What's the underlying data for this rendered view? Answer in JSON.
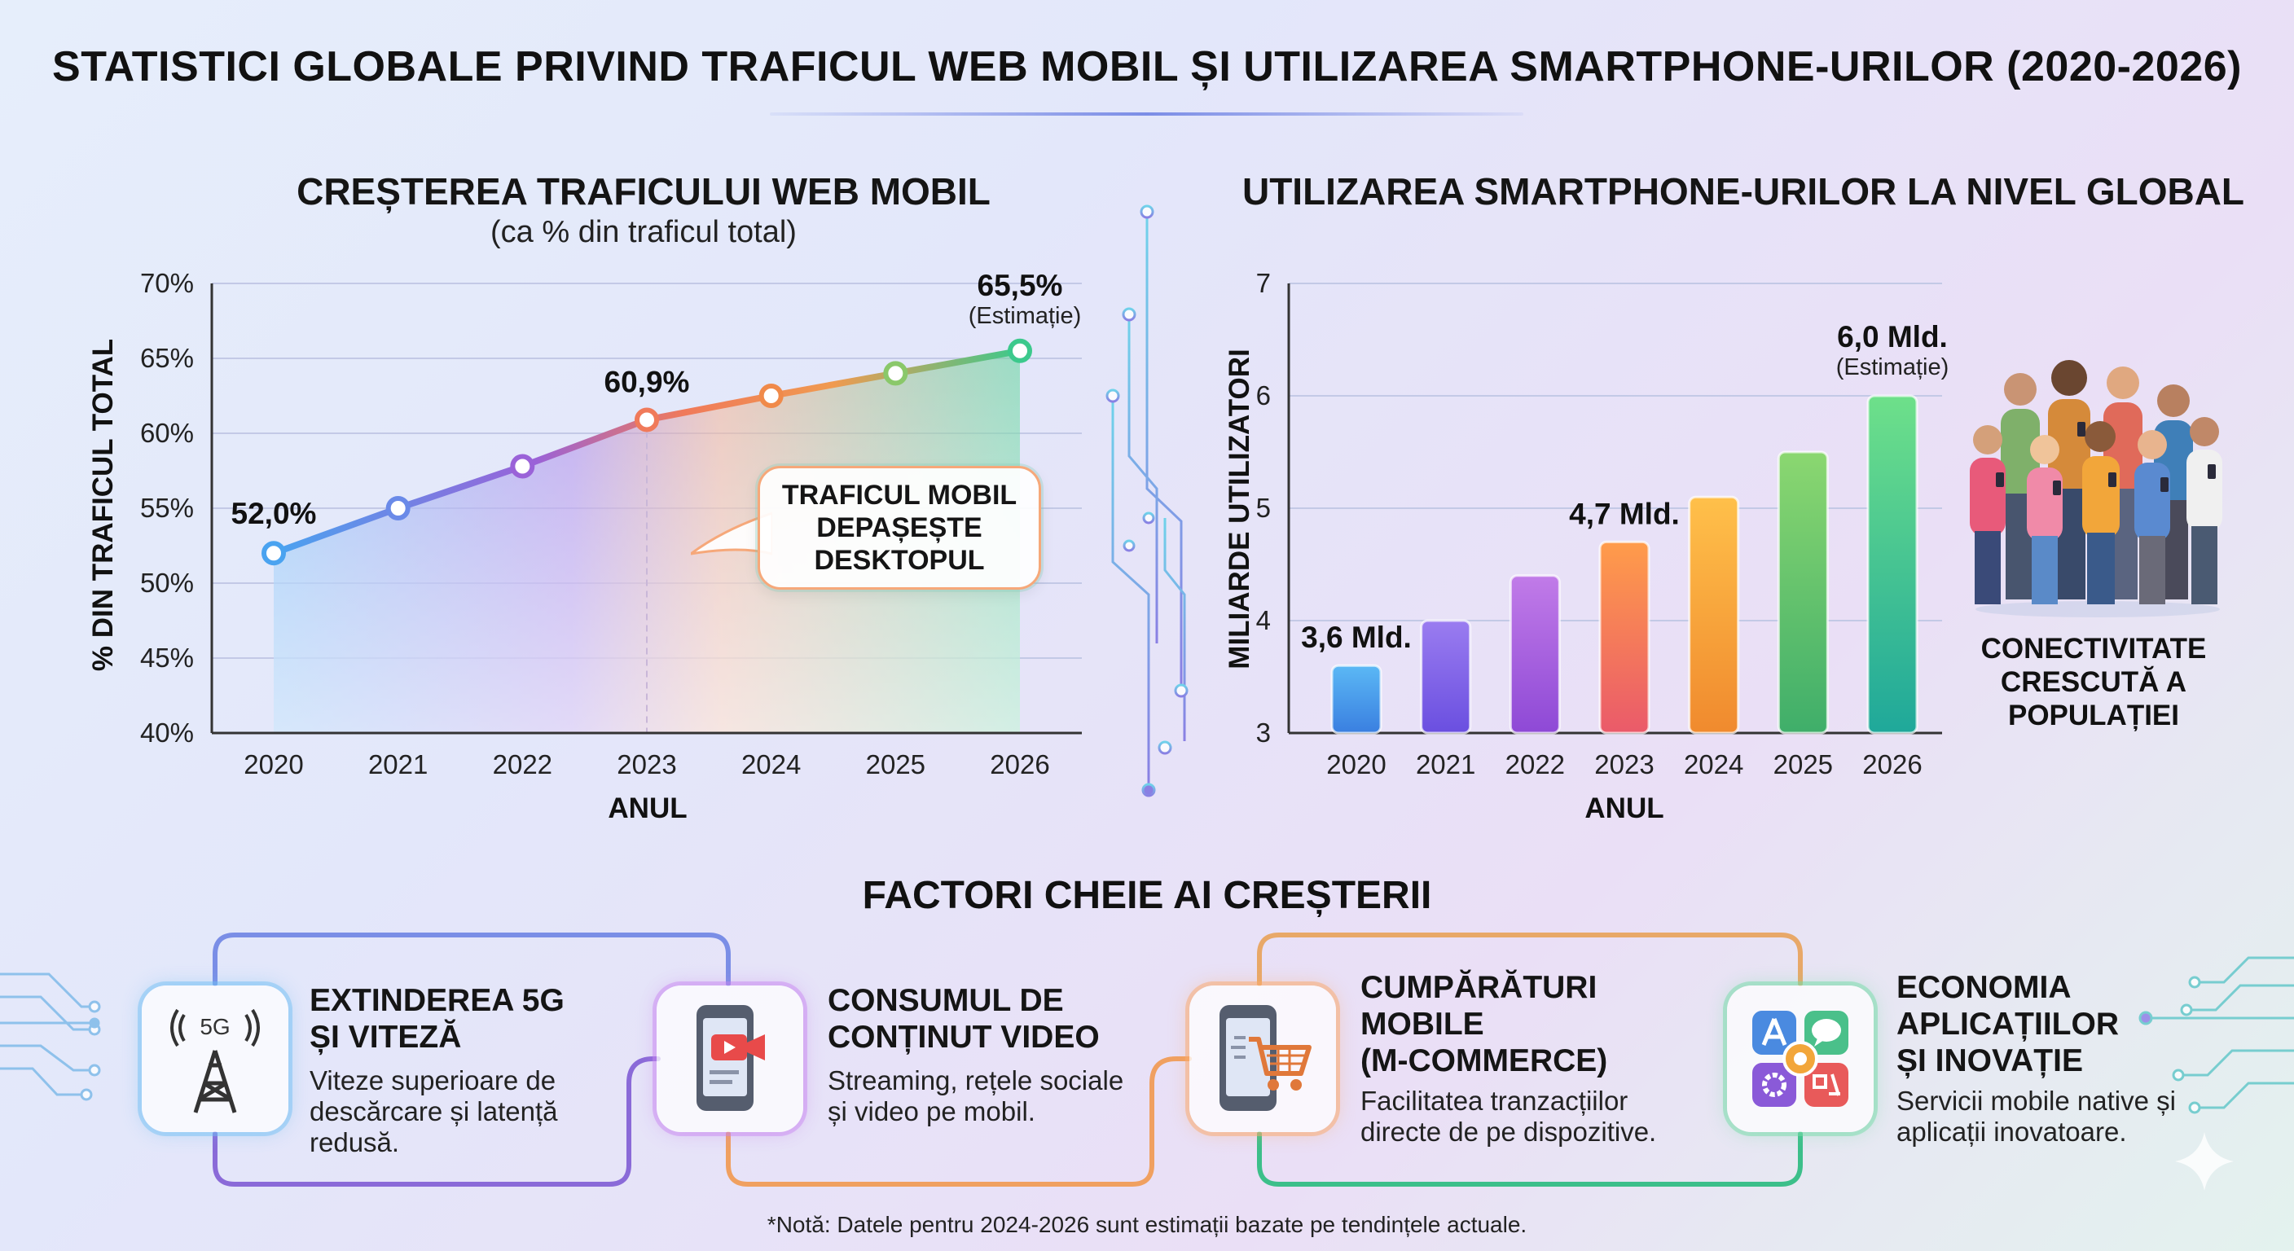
{
  "header": {
    "title": "STATISTICI GLOBALE PRIVIND TRAFICUL WEB MOBIL ȘI UTILIZAREA SMARTPHONE-URILOR (2020-2026)"
  },
  "left_panel": {
    "title": "CREȘTEREA TRAFICULUI WEB MOBIL",
    "subtitle": "(ca % din traficul total)",
    "callout": "TRAFICUL MOBIL DEPAȘEȘTE DESKTOPUL"
  },
  "right_panel": {
    "title": "UTILIZAREA SMARTPHONE-URILOR LA NIVEL GLOBAL",
    "people_caption": "CONECTIVITATE CRESCUTĂ A POPULAȚIEI"
  },
  "chart_data": [
    {
      "type": "line",
      "x": [
        2020,
        2021,
        2022,
        2023,
        2024,
        2025,
        2026
      ],
      "values": [
        52.0,
        55.0,
        57.8,
        60.9,
        62.5,
        64.0,
        65.5
      ],
      "tick_labels_x": [
        "2020",
        "2021",
        "2022",
        "2023",
        "2024",
        "2025",
        "2026"
      ],
      "tick_labels_y": [
        "70%",
        "65%",
        "60%",
        "55%",
        "50%",
        "45%",
        "40%"
      ],
      "xlabel": "ANUL",
      "ylabel": "% DIN TRAFICUL TOTAL",
      "ylim": [
        40,
        70
      ],
      "grid": true,
      "data_labels": [
        {
          "index": 0,
          "text": "52,0%"
        },
        {
          "index": 3,
          "text": "60,9%"
        },
        {
          "index": 6,
          "text": "65,5%",
          "note": "(Estimație)"
        }
      ]
    },
    {
      "type": "bar",
      "categories": [
        "2020",
        "2021",
        "2022",
        "2023",
        "2024",
        "2025",
        "2026"
      ],
      "values": [
        3.6,
        4.0,
        4.4,
        4.7,
        5.1,
        5.5,
        6.0
      ],
      "tick_labels_y": [
        "7",
        "6",
        "5",
        "4",
        "3"
      ],
      "xlabel": "ANUL",
      "ylabel": "MILIARDE UTILIZATORI",
      "ylim": [
        3,
        7
      ],
      "grid": true,
      "data_labels": [
        {
          "index": 0,
          "text": "3,6 Mld."
        },
        {
          "index": 3,
          "text": "4,7 Mld."
        },
        {
          "index": 6,
          "text": "6,0 Mld.",
          "note": "(Estimație)"
        }
      ],
      "bar_colors": [
        [
          "#5bb8f5",
          "#3a7fe0"
        ],
        [
          "#9a7cf0",
          "#6a4fe0"
        ],
        [
          "#c17be8",
          "#8e49d6"
        ],
        [
          "#ff9c4a",
          "#ea5a6a"
        ],
        [
          "#ffc04a",
          "#f08a2e"
        ],
        [
          "#8bd770",
          "#3fae6a"
        ],
        [
          "#6ee08a",
          "#1fa89a"
        ]
      ]
    }
  ],
  "factors": {
    "title": "FACTORI CHEIE AI CREȘTERII",
    "items": [
      {
        "title_lines": [
          "EXTINDEREA 5G",
          "ȘI VITEZĂ"
        ],
        "desc_lines": [
          "Viteze superioare de",
          "descărcare și latență",
          "redusă."
        ],
        "icon": "5g-tower-icon",
        "icon_text": "5G"
      },
      {
        "title_lines": [
          "CONSUMUL DE",
          "CONȚINUT VIDEO"
        ],
        "desc_lines": [
          "Streaming, rețele sociale",
          "și video pe mobil."
        ],
        "icon": "video-phone-icon"
      },
      {
        "title_lines": [
          "CUMPĂRĂTURI",
          "MOBILE",
          "(M-COMMERCE)"
        ],
        "desc_lines": [
          "Facilitatea tranzacțiilor",
          "directe de pe dispozitive."
        ],
        "icon": "shopping-cart-phone-icon"
      },
      {
        "title_lines": [
          "ECONOMIA",
          "APLICAȚIILOR",
          "ȘI INOVAȚIE"
        ],
        "desc_lines": [
          "Servicii mobile native și",
          "aplicații inovatoare."
        ],
        "icon": "app-grid-icon"
      }
    ]
  },
  "footnote": "*Notă: Datele pentru 2024-2026 sunt estimații bazate pe tendințele actuale."
}
